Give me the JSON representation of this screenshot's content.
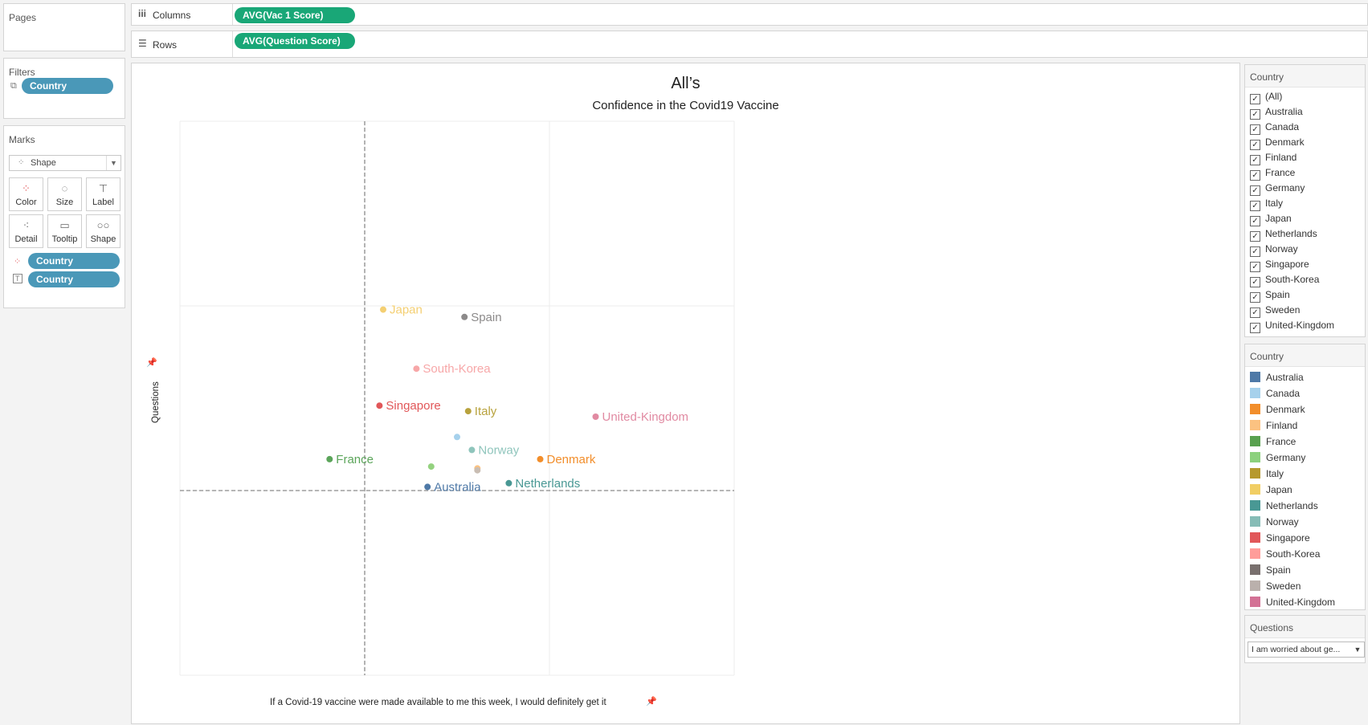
{
  "left_panel": {
    "pages_title": "Pages",
    "filters_title": "Filters",
    "filter_pill": "Country",
    "marks_title": "Marks",
    "mark_type": "Shape",
    "mark_buttons": [
      "Color",
      "Size",
      "Label",
      "Detail",
      "Tooltip",
      "Shape"
    ],
    "mark_pills": [
      "Country",
      "Country"
    ]
  },
  "shelves": {
    "columns_label": "Columns",
    "columns_pill": "AVG(Vac 1 Score)",
    "rows_label": "Rows",
    "rows_pill": "AVG(Question Score)"
  },
  "chart_data": {
    "type": "scatter",
    "title": "All’s",
    "subtitle": "Confidence  in the Covid19 Vaccine",
    "xlabel": "If a Covid-19 vaccine were made available to me this week, I would definitely get it",
    "ylabel": "Questions",
    "xlim": [
      0,
      3
    ],
    "ylim": [
      0,
      3
    ],
    "reference_lines": {
      "x": 1,
      "y": 1
    },
    "grid": true,
    "points": [
      {
        "country": "Japan",
        "x": 1.1,
        "y": 1.98,
        "color": "#f4cf72",
        "label": "Japan"
      },
      {
        "country": "Spain",
        "x": 1.54,
        "y": 1.94,
        "color": "#8c8a8a",
        "label": "Spain"
      },
      {
        "country": "South-Korea",
        "x": 1.28,
        "y": 1.66,
        "color": "#f7a7a8",
        "label": "South-Korea"
      },
      {
        "country": "Singapore",
        "x": 1.08,
        "y": 1.46,
        "color": "#e15759",
        "label": "Singapore"
      },
      {
        "country": "Italy",
        "x": 1.56,
        "y": 1.43,
        "color": "#b8a23d",
        "label": "Italy"
      },
      {
        "country": "United-Kingdom",
        "x": 2.25,
        "y": 1.4,
        "color": "#e18aa2",
        "label": "United-Kingdom"
      },
      {
        "country": "Canada",
        "x": 1.5,
        "y": 1.29,
        "color": "#a6d1ec",
        "label": ""
      },
      {
        "country": "Norway",
        "x": 1.58,
        "y": 1.22,
        "color": "#8fc5bc",
        "label": "Norway"
      },
      {
        "country": "France",
        "x": 0.81,
        "y": 1.17,
        "color": "#5ba55a",
        "label": "France"
      },
      {
        "country": "Denmark",
        "x": 1.95,
        "y": 1.17,
        "color": "#f28e2b",
        "label": "Denmark"
      },
      {
        "country": "Germany",
        "x": 1.36,
        "y": 1.13,
        "color": "#94d27f",
        "label": ""
      },
      {
        "country": "Finland",
        "x": 1.61,
        "y": 1.12,
        "color": "#fbc281",
        "label": ""
      },
      {
        "country": "Sweden",
        "x": 1.61,
        "y": 1.11,
        "color": "#c9bdb3",
        "label": ""
      },
      {
        "country": "Netherlands",
        "x": 1.78,
        "y": 1.04,
        "color": "#499894",
        "label": "Netherlands"
      },
      {
        "country": "Australia",
        "x": 1.34,
        "y": 1.02,
        "color": "#4e79a7",
        "label": "Australia"
      }
    ]
  },
  "country_filter": {
    "title": "Country",
    "items": [
      "(All)",
      "Australia",
      "Canada",
      "Denmark",
      "Finland",
      "France",
      "Germany",
      "Italy",
      "Japan",
      "Netherlands",
      "Norway",
      "Singapore",
      "South-Korea",
      "Spain",
      "Sweden",
      "United-Kingdom"
    ]
  },
  "country_legend": {
    "title": "Country",
    "items": [
      {
        "label": "Australia",
        "color": "#4e79a7"
      },
      {
        "label": "Canada",
        "color": "#a6d1ec"
      },
      {
        "label": "Denmark",
        "color": "#f28e2b"
      },
      {
        "label": "Finland",
        "color": "#fbc281"
      },
      {
        "label": "France",
        "color": "#59a14f"
      },
      {
        "label": "Germany",
        "color": "#8cd17d"
      },
      {
        "label": "Italy",
        "color": "#b6992d"
      },
      {
        "label": "Japan",
        "color": "#f1ce63"
      },
      {
        "label": "Netherlands",
        "color": "#499894"
      },
      {
        "label": "Norway",
        "color": "#86bcb6"
      },
      {
        "label": "Singapore",
        "color": "#e15759"
      },
      {
        "label": "South-Korea",
        "color": "#ff9d9a"
      },
      {
        "label": "Spain",
        "color": "#79706e"
      },
      {
        "label": "Sweden",
        "color": "#bab0ac"
      },
      {
        "label": "United-Kingdom",
        "color": "#d37295"
      }
    ]
  },
  "questions_param": {
    "title": "Questions",
    "value": "I am worried about ge..."
  }
}
